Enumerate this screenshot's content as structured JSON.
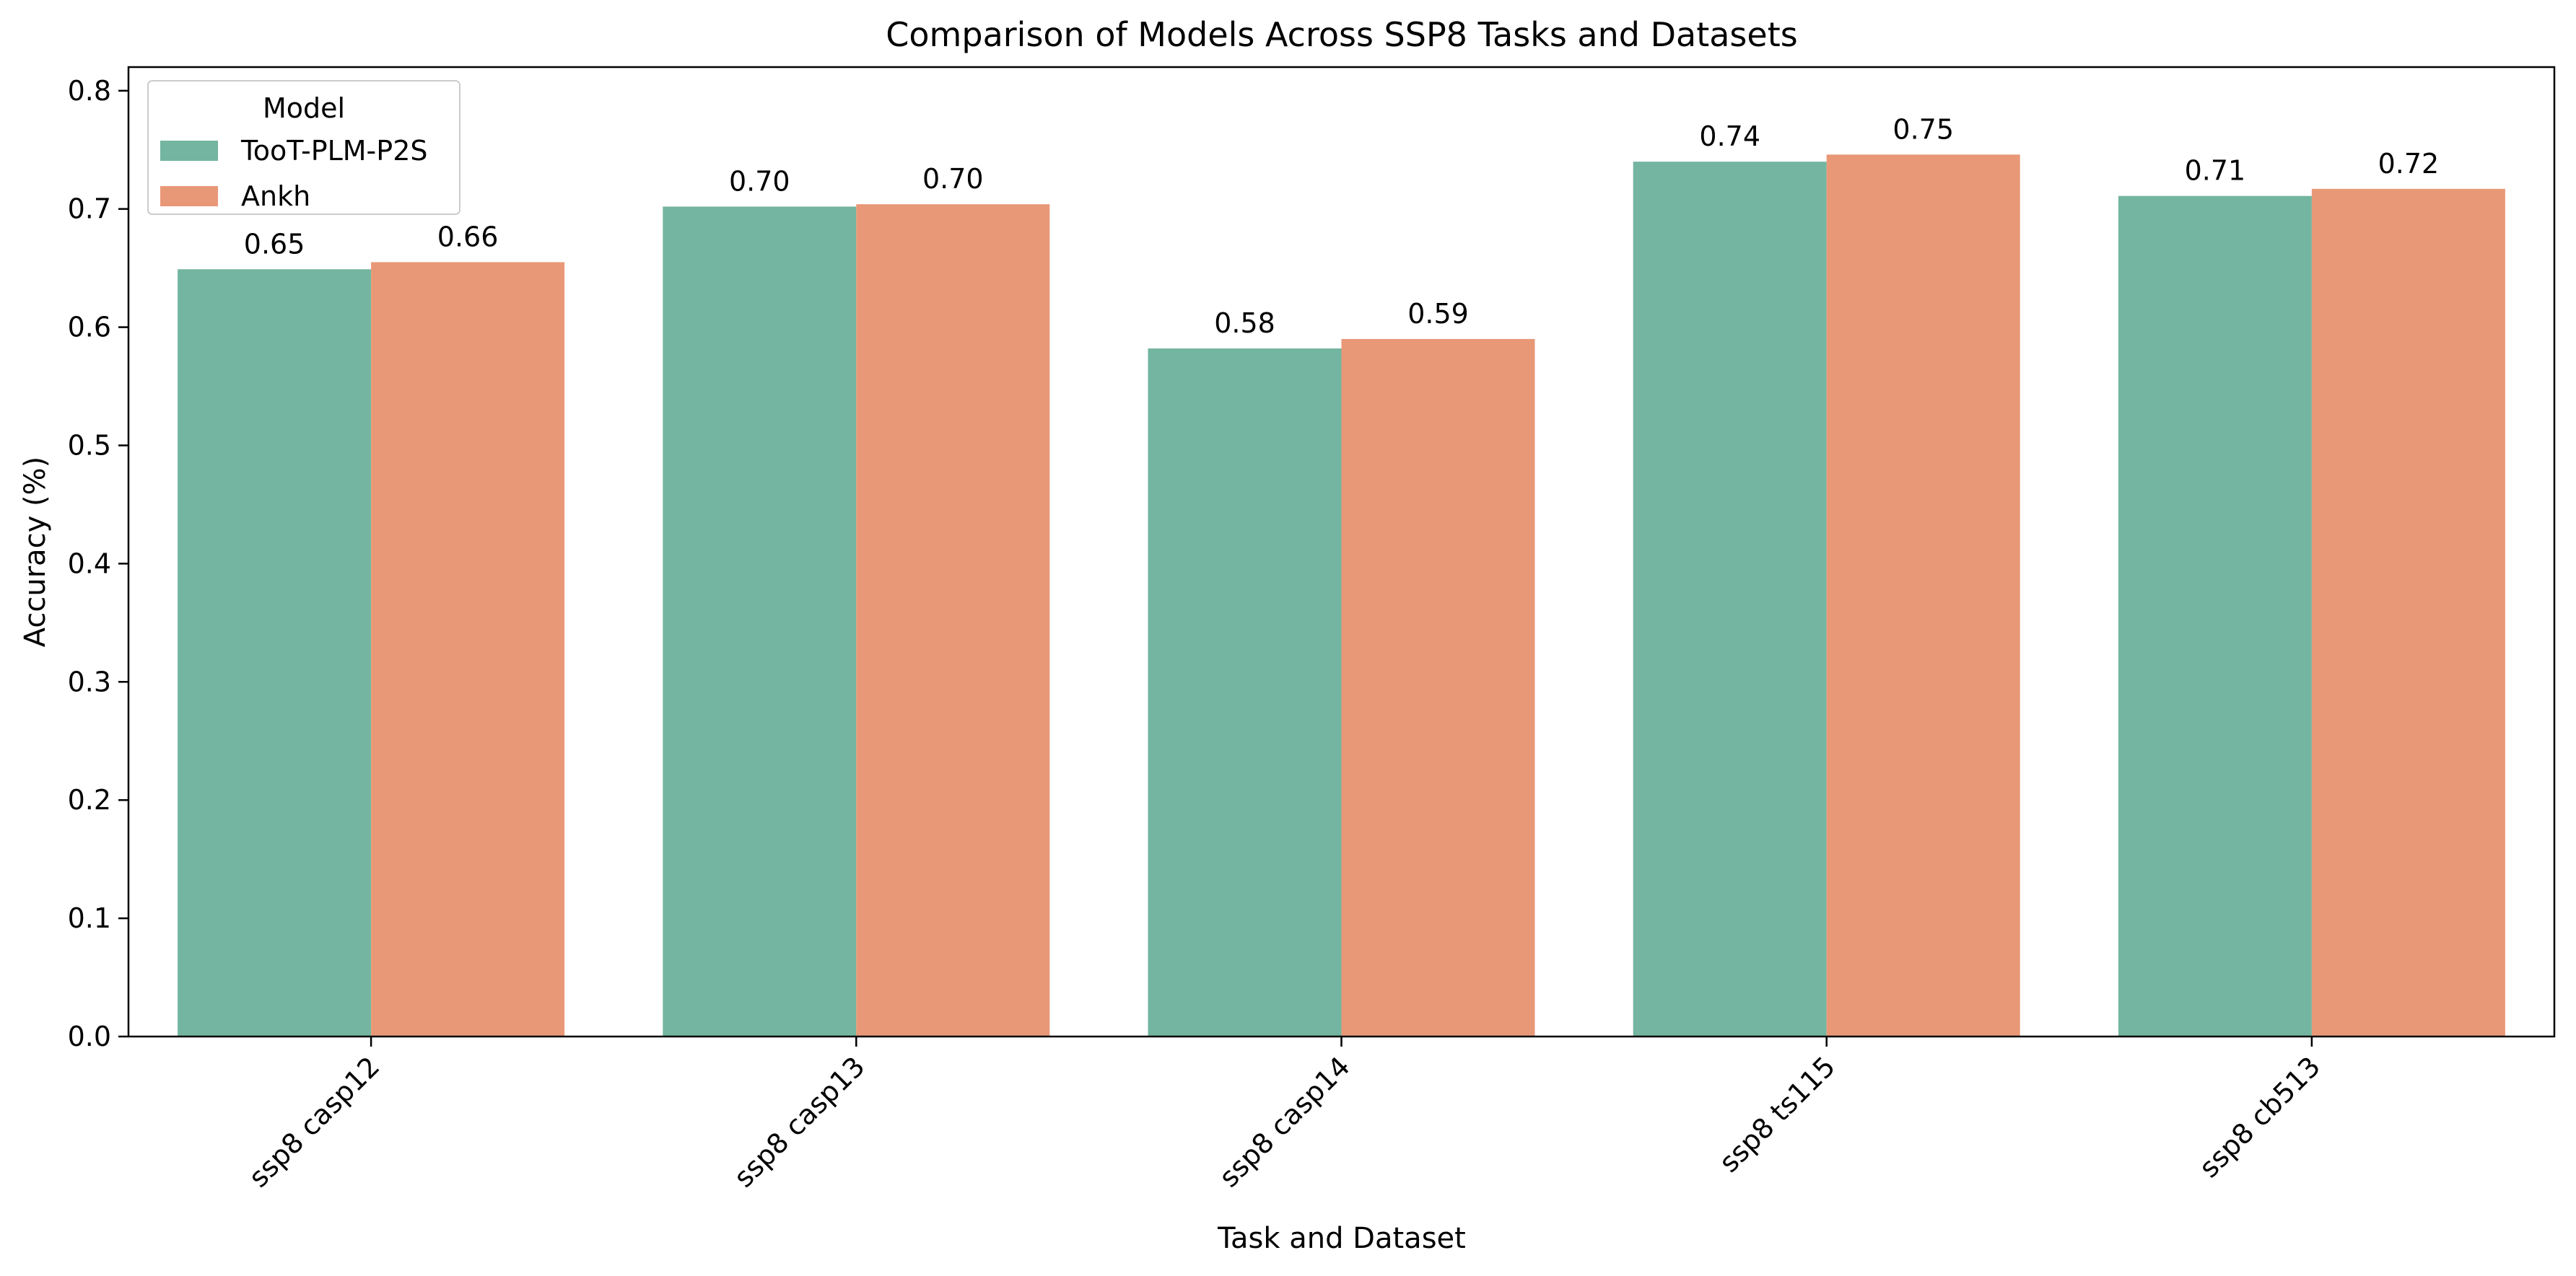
{
  "chart_data": {
    "type": "bar",
    "title": "Comparison of Models Across SSP8 Tasks and Datasets",
    "xlabel": "Task and Dataset",
    "ylabel": "Accuracy (%)",
    "categories": [
      "ssp8 casp12",
      "ssp8 casp13",
      "ssp8 casp14",
      "ssp8 ts115",
      "ssp8 cb513"
    ],
    "series": [
      {
        "name": "TooT-PLM-P2S",
        "color": "#73b5a0",
        "values": [
          0.649,
          0.702,
          0.582,
          0.74,
          0.711
        ],
        "labels": [
          "0.65",
          "0.70",
          "0.58",
          "0.74",
          "0.71"
        ]
      },
      {
        "name": "Ankh",
        "color": "#e99877",
        "values": [
          0.655,
          0.704,
          0.59,
          0.746,
          0.717
        ],
        "labels": [
          "0.66",
          "0.70",
          "0.59",
          "0.75",
          "0.72"
        ]
      }
    ],
    "ylim": [
      0,
      0.82
    ],
    "yticks": [
      "0.0",
      "0.1",
      "0.2",
      "0.3",
      "0.4",
      "0.5",
      "0.6",
      "0.7",
      "0.8"
    ],
    "legend": {
      "title": "Model",
      "placement": "top-left"
    },
    "grid": false
  }
}
